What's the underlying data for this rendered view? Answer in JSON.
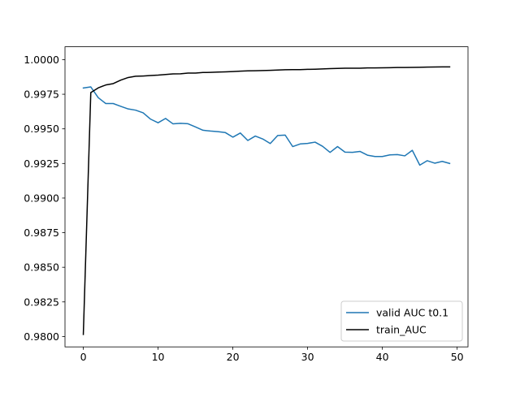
{
  "chart_data": {
    "type": "line",
    "title": "",
    "xlabel": "",
    "ylabel": "",
    "xlim": [
      -2.45,
      51.45
    ],
    "ylim": [
      0.97925,
      1.00093
    ],
    "x_ticks": [
      0,
      10,
      20,
      30,
      40,
      50
    ],
    "y_ticks": [
      0.98,
      0.9825,
      0.985,
      0.9875,
      0.99,
      0.9925,
      0.995,
      0.9975,
      1.0
    ],
    "y_tick_labels": [
      "0.9800",
      "0.9825",
      "0.9850",
      "0.9875",
      "0.9900",
      "0.9925",
      "0.9950",
      "0.9975",
      "1.0000"
    ],
    "grid": false,
    "legend_position": "lower-right",
    "x": [
      0,
      1,
      2,
      3,
      4,
      5,
      6,
      7,
      8,
      9,
      10,
      11,
      12,
      13,
      14,
      15,
      16,
      17,
      18,
      19,
      20,
      21,
      22,
      23,
      24,
      25,
      26,
      27,
      28,
      29,
      30,
      31,
      32,
      33,
      34,
      35,
      36,
      37,
      38,
      39,
      40,
      41,
      42,
      43,
      44,
      45,
      46,
      47,
      48,
      49
    ],
    "series": [
      {
        "name": "valid AUC t0.1",
        "color": "#1f77b4",
        "values": [
          0.99795,
          0.99803,
          0.99725,
          0.99683,
          0.99683,
          0.99663,
          0.99644,
          0.99635,
          0.99616,
          0.9957,
          0.99544,
          0.99575,
          0.99536,
          0.9954,
          0.99537,
          0.99514,
          0.9949,
          0.99484,
          0.9948,
          0.99473,
          0.9944,
          0.9947,
          0.99416,
          0.99448,
          0.99427,
          0.99394,
          0.99452,
          0.99455,
          0.99372,
          0.99391,
          0.99395,
          0.99404,
          0.99374,
          0.9933,
          0.99372,
          0.99332,
          0.9933,
          0.99337,
          0.9931,
          0.993,
          0.993,
          0.99312,
          0.99314,
          0.99305,
          0.99345,
          0.99238,
          0.9927,
          0.99252,
          0.99265,
          0.9925
        ]
      },
      {
        "name": "train_AUC",
        "color": "#000000",
        "values": [
          0.98015,
          0.99762,
          0.99796,
          0.99817,
          0.99827,
          0.99852,
          0.99871,
          0.9988,
          0.99882,
          0.99885,
          0.99888,
          0.99893,
          0.99897,
          0.99898,
          0.99903,
          0.99903,
          0.99907,
          0.99908,
          0.9991,
          0.99912,
          0.99914,
          0.99917,
          0.99919,
          0.9992,
          0.99921,
          0.99923,
          0.99925,
          0.99927,
          0.99928,
          0.99928,
          0.9993,
          0.99931,
          0.99933,
          0.99935,
          0.99937,
          0.99938,
          0.99938,
          0.99938,
          0.9994,
          0.9994,
          0.99941,
          0.99942,
          0.99943,
          0.99943,
          0.99944,
          0.99945,
          0.99946,
          0.99947,
          0.99948,
          0.99948
        ]
      }
    ]
  }
}
